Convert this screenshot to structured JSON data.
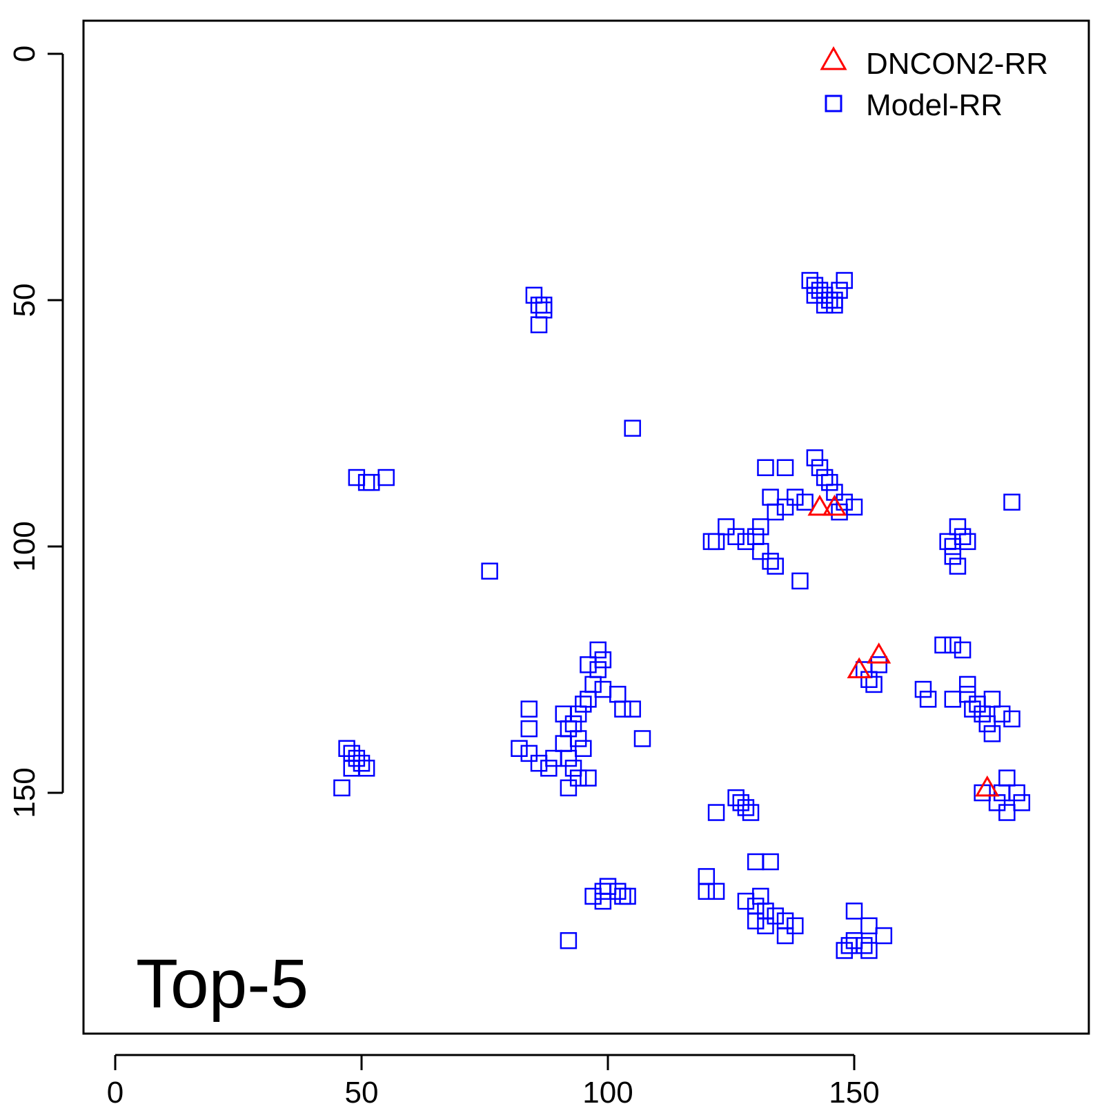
{
  "chart_data": {
    "type": "scatter",
    "panel_label": "Top-5",
    "x_ticks": [
      "0",
      "50",
      "100",
      "150"
    ],
    "y_ticks": [
      "0",
      "50",
      "100",
      "150"
    ],
    "xlim": [
      -6.5,
      197
    ],
    "ylim_reversed": [
      -6.5,
      197
    ],
    "grid": false,
    "legend_position": "top-right",
    "series": [
      {
        "name": "DNCON2-RR",
        "marker": "triangle",
        "color": "#ff0000",
        "points": [
          [
            143,
            92
          ],
          [
            146,
            92
          ],
          [
            151,
            125
          ],
          [
            155,
            122
          ],
          [
            177,
            149
          ]
        ]
      },
      {
        "name": "Model-RR",
        "marker": "square",
        "color": "#0000ff",
        "points": [
          [
            85,
            49
          ],
          [
            86,
            51
          ],
          [
            87,
            51
          ],
          [
            87,
            52
          ],
          [
            86,
            55
          ],
          [
            141,
            46
          ],
          [
            142,
            47
          ],
          [
            143,
            48
          ],
          [
            144,
            49
          ],
          [
            145,
            50
          ],
          [
            146,
            50
          ],
          [
            147,
            48
          ],
          [
            148,
            46
          ],
          [
            142,
            49
          ],
          [
            144,
            51
          ],
          [
            146,
            51
          ],
          [
            105,
            76
          ],
          [
            49,
            86
          ],
          [
            51,
            87
          ],
          [
            52,
            87
          ],
          [
            55,
            86
          ],
          [
            142,
            82
          ],
          [
            143,
            84
          ],
          [
            144,
            86
          ],
          [
            145,
            87
          ],
          [
            146,
            89
          ],
          [
            132,
            84
          ],
          [
            136,
            84
          ],
          [
            148,
            91
          ],
          [
            150,
            92
          ],
          [
            147,
            93
          ],
          [
            140,
            91
          ],
          [
            138,
            90
          ],
          [
            136,
            92
          ],
          [
            134,
            93
          ],
          [
            133,
            90
          ],
          [
            131,
            96
          ],
          [
            130,
            98
          ],
          [
            128,
            99
          ],
          [
            126,
            98
          ],
          [
            124,
            96
          ],
          [
            122,
            99
          ],
          [
            121,
            99
          ],
          [
            131,
            101
          ],
          [
            133,
            103
          ],
          [
            134,
            104
          ],
          [
            139,
            107
          ],
          [
            76,
            105
          ],
          [
            182,
            91
          ],
          [
            171,
            96
          ],
          [
            172,
            98
          ],
          [
            173,
            99
          ],
          [
            170,
            100
          ],
          [
            169,
            99
          ],
          [
            170,
            102
          ],
          [
            171,
            104
          ],
          [
            168,
            120
          ],
          [
            170,
            120
          ],
          [
            172,
            121
          ],
          [
            155,
            124
          ],
          [
            152,
            125
          ],
          [
            153,
            127
          ],
          [
            154,
            128
          ],
          [
            164,
            129
          ],
          [
            165,
            131
          ],
          [
            170,
            131
          ],
          [
            173,
            130
          ],
          [
            175,
            132
          ],
          [
            176,
            134
          ],
          [
            178,
            131
          ],
          [
            180,
            134
          ],
          [
            177,
            136
          ],
          [
            178,
            138
          ],
          [
            182,
            135
          ],
          [
            173,
            128
          ],
          [
            174,
            133
          ],
          [
            98,
            121
          ],
          [
            99,
            123
          ],
          [
            96,
            124
          ],
          [
            98,
            125
          ],
          [
            97,
            128
          ],
          [
            99,
            129
          ],
          [
            96,
            131
          ],
          [
            95,
            132
          ],
          [
            94,
            134
          ],
          [
            93,
            136
          ],
          [
            92,
            137
          ],
          [
            94,
            139
          ],
          [
            95,
            141
          ],
          [
            92,
            143
          ],
          [
            93,
            145
          ],
          [
            94,
            147
          ],
          [
            92,
            149
          ],
          [
            96,
            147
          ],
          [
            84,
            133
          ],
          [
            84,
            137
          ],
          [
            82,
            141
          ],
          [
            84,
            142
          ],
          [
            86,
            144
          ],
          [
            88,
            145
          ],
          [
            89,
            143
          ],
          [
            91,
            140
          ],
          [
            91,
            134
          ],
          [
            102,
            130
          ],
          [
            103,
            133
          ],
          [
            105,
            133
          ],
          [
            107,
            139
          ],
          [
            47,
            141
          ],
          [
            48,
            142
          ],
          [
            49,
            143
          ],
          [
            50,
            144
          ],
          [
            51,
            145
          ],
          [
            48,
            145
          ],
          [
            46,
            149
          ],
          [
            126,
            151
          ],
          [
            127,
            152
          ],
          [
            128,
            153
          ],
          [
            129,
            154
          ],
          [
            122,
            154
          ],
          [
            130,
            164
          ],
          [
            133,
            164
          ],
          [
            120,
            167
          ],
          [
            120,
            170
          ],
          [
            122,
            170
          ],
          [
            97,
            171
          ],
          [
            99,
            170
          ],
          [
            100,
            169
          ],
          [
            102,
            170
          ],
          [
            103,
            171
          ],
          [
            104,
            171
          ],
          [
            99,
            172
          ],
          [
            92,
            180
          ],
          [
            128,
            172
          ],
          [
            130,
            173
          ],
          [
            131,
            171
          ],
          [
            132,
            174
          ],
          [
            134,
            175
          ],
          [
            136,
            176
          ],
          [
            138,
            177
          ],
          [
            130,
            176
          ],
          [
            132,
            177
          ],
          [
            136,
            179
          ],
          [
            150,
            174
          ],
          [
            150,
            180
          ],
          [
            153,
            177
          ],
          [
            156,
            179
          ],
          [
            152,
            181
          ],
          [
            153,
            182
          ],
          [
            149,
            181
          ],
          [
            148,
            182
          ],
          [
            176,
            150
          ],
          [
            180,
            150
          ],
          [
            181,
            147
          ],
          [
            183,
            150
          ],
          [
            184,
            152
          ],
          [
            179,
            152
          ],
          [
            181,
            154
          ]
        ]
      }
    ]
  }
}
